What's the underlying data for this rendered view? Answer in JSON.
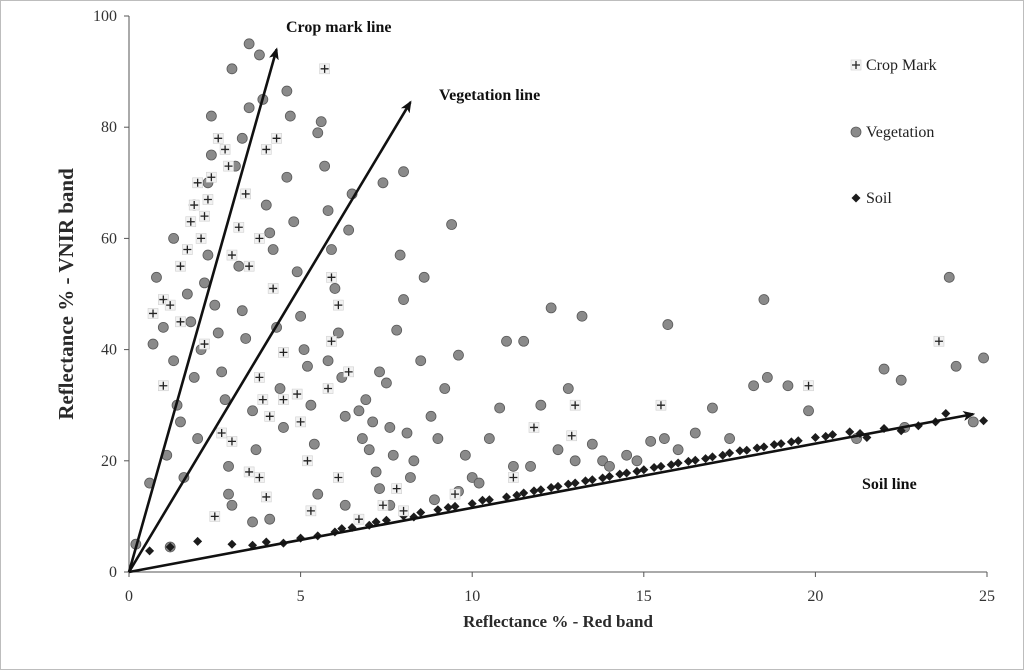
{
  "chart_data": {
    "type": "scatter",
    "xlabel": "Reflectance % - Red band",
    "ylabel": "Reflectance % - VNIR band",
    "xlim": [
      0,
      25
    ],
    "ylim": [
      0,
      100
    ],
    "x_ticks": [
      "0",
      "5",
      "10",
      "15",
      "20",
      "25"
    ],
    "y_ticks": [
      "0",
      "20",
      "40",
      "60",
      "80",
      "100"
    ],
    "grid": false,
    "legend_position": "top-right",
    "series": [
      {
        "name": "Crop Mark",
        "marker": "square-cross",
        "color": "#f2f2f2",
        "points": [
          [
            0.7,
            46.5
          ],
          [
            1.0,
            49
          ],
          [
            1.2,
            48
          ],
          [
            1.0,
            33.5
          ],
          [
            1.5,
            55
          ],
          [
            1.7,
            58
          ],
          [
            1.8,
            63
          ],
          [
            1.9,
            66
          ],
          [
            2.0,
            70
          ],
          [
            2.1,
            60
          ],
          [
            2.2,
            64
          ],
          [
            2.3,
            67
          ],
          [
            2.4,
            71
          ],
          [
            2.6,
            78
          ],
          [
            2.8,
            76
          ],
          [
            2.9,
            73
          ],
          [
            3.0,
            57
          ],
          [
            3.2,
            62
          ],
          [
            3.4,
            68
          ],
          [
            3.5,
            55
          ],
          [
            3.8,
            60
          ],
          [
            4.0,
            76
          ],
          [
            4.3,
            78
          ],
          [
            4.2,
            51
          ],
          [
            4.5,
            39.5
          ],
          [
            3.8,
            35
          ],
          [
            3.9,
            31
          ],
          [
            4.1,
            28
          ],
          [
            4.5,
            31
          ],
          [
            4.9,
            32
          ],
          [
            5.0,
            27
          ],
          [
            5.2,
            20
          ],
          [
            3.5,
            18
          ],
          [
            3.8,
            17
          ],
          [
            4.0,
            13.5
          ],
          [
            2.5,
            10
          ],
          [
            5.7,
            90.5
          ],
          [
            5.9,
            53
          ],
          [
            6.1,
            48
          ],
          [
            5.9,
            41.5
          ],
          [
            5.8,
            33
          ],
          [
            6.4,
            36
          ],
          [
            6.1,
            17
          ],
          [
            5.3,
            11
          ],
          [
            6.7,
            9.5
          ],
          [
            7.4,
            12
          ],
          [
            7.8,
            15
          ],
          [
            8.0,
            11
          ],
          [
            9.5,
            14
          ],
          [
            11.2,
            17
          ],
          [
            11.8,
            26
          ],
          [
            12.9,
            24.5
          ],
          [
            13.0,
            30
          ],
          [
            15.5,
            30
          ],
          [
            19.8,
            33.5
          ],
          [
            23.6,
            41.5
          ],
          [
            3.0,
            23.5
          ],
          [
            2.7,
            25
          ],
          [
            1.5,
            45
          ],
          [
            2.2,
            41
          ]
        ]
      },
      {
        "name": "Vegetation",
        "marker": "circle",
        "color": "#8a8a8a",
        "points": [
          [
            0.2,
            5
          ],
          [
            0.6,
            16
          ],
          [
            0.8,
            53
          ],
          [
            0.7,
            41
          ],
          [
            1.1,
            21
          ],
          [
            1.2,
            4.5
          ],
          [
            1.3,
            38
          ],
          [
            1.4,
            30
          ],
          [
            1.5,
            27
          ],
          [
            1.6,
            17
          ],
          [
            1.7,
            50
          ],
          [
            1.8,
            45
          ],
          [
            1.9,
            35
          ],
          [
            2.0,
            24
          ],
          [
            2.1,
            40
          ],
          [
            2.2,
            52
          ],
          [
            2.3,
            57
          ],
          [
            2.4,
            75
          ],
          [
            2.4,
            82
          ],
          [
            2.5,
            48
          ],
          [
            2.6,
            43
          ],
          [
            2.7,
            36
          ],
          [
            2.8,
            31
          ],
          [
            2.9,
            19
          ],
          [
            3.0,
            12
          ],
          [
            3.0,
            90.5
          ],
          [
            3.1,
            73
          ],
          [
            3.2,
            55
          ],
          [
            3.3,
            47
          ],
          [
            3.4,
            42
          ],
          [
            3.5,
            83.5
          ],
          [
            3.5,
            95
          ],
          [
            3.6,
            29
          ],
          [
            3.7,
            22
          ],
          [
            3.8,
            93
          ],
          [
            3.9,
            85
          ],
          [
            4.0,
            66
          ],
          [
            4.1,
            61
          ],
          [
            4.2,
            58
          ],
          [
            4.3,
            44
          ],
          [
            4.4,
            33
          ],
          [
            4.5,
            26
          ],
          [
            4.6,
            71
          ],
          [
            4.7,
            82
          ],
          [
            4.8,
            63
          ],
          [
            4.9,
            54
          ],
          [
            5.0,
            46
          ],
          [
            5.1,
            40
          ],
          [
            5.2,
            37
          ],
          [
            5.3,
            30
          ],
          [
            5.4,
            23
          ],
          [
            5.5,
            79
          ],
          [
            5.6,
            81
          ],
          [
            5.7,
            73
          ],
          [
            5.8,
            65
          ],
          [
            5.9,
            58
          ],
          [
            6.0,
            51
          ],
          [
            6.1,
            43
          ],
          [
            6.2,
            35
          ],
          [
            6.3,
            28
          ],
          [
            6.4,
            61.5
          ],
          [
            6.5,
            68
          ],
          [
            6.7,
            29
          ],
          [
            6.8,
            24
          ],
          [
            7.0,
            22
          ],
          [
            7.1,
            27
          ],
          [
            7.2,
            18
          ],
          [
            7.3,
            15
          ],
          [
            7.4,
            70
          ],
          [
            7.5,
            34
          ],
          [
            7.6,
            26
          ],
          [
            7.7,
            21
          ],
          [
            7.8,
            43.5
          ],
          [
            7.9,
            57
          ],
          [
            8.0,
            72
          ],
          [
            8.0,
            49
          ],
          [
            8.1,
            25
          ],
          [
            8.2,
            17
          ],
          [
            8.3,
            20
          ],
          [
            8.5,
            38
          ],
          [
            8.6,
            53
          ],
          [
            8.8,
            28
          ],
          [
            9.0,
            24
          ],
          [
            9.2,
            33
          ],
          [
            9.4,
            62.5
          ],
          [
            9.6,
            39
          ],
          [
            9.8,
            21
          ],
          [
            10.0,
            17
          ],
          [
            10.2,
            16
          ],
          [
            10.5,
            24
          ],
          [
            10.8,
            29.5
          ],
          [
            11.0,
            41.5
          ],
          [
            11.2,
            19
          ],
          [
            11.5,
            41.5
          ],
          [
            11.7,
            19
          ],
          [
            12.0,
            30
          ],
          [
            12.3,
            47.5
          ],
          [
            12.5,
            22
          ],
          [
            12.8,
            33
          ],
          [
            13.0,
            20
          ],
          [
            13.2,
            46
          ],
          [
            13.5,
            23
          ],
          [
            13.8,
            20
          ],
          [
            14.0,
            19
          ],
          [
            14.5,
            21
          ],
          [
            14.8,
            20
          ],
          [
            15.2,
            23.5
          ],
          [
            15.6,
            24
          ],
          [
            15.7,
            44.5
          ],
          [
            16.0,
            22
          ],
          [
            16.5,
            25
          ],
          [
            17.0,
            29.5
          ],
          [
            17.5,
            24
          ],
          [
            18.2,
            33.5
          ],
          [
            18.5,
            49
          ],
          [
            18.6,
            35
          ],
          [
            19.2,
            33.5
          ],
          [
            19.8,
            29
          ],
          [
            21.2,
            24
          ],
          [
            22.0,
            36.5
          ],
          [
            22.5,
            34.5
          ],
          [
            22.6,
            26
          ],
          [
            23.9,
            53
          ],
          [
            24.1,
            37
          ],
          [
            24.6,
            27
          ],
          [
            24.9,
            38.5
          ],
          [
            1.0,
            44
          ],
          [
            1.3,
            60
          ],
          [
            1.9,
            66
          ],
          [
            2.3,
            70
          ],
          [
            3.3,
            78
          ],
          [
            4.6,
            86.5
          ],
          [
            2.9,
            14
          ],
          [
            4.1,
            9.5
          ],
          [
            3.6,
            9
          ],
          [
            5.5,
            14
          ],
          [
            6.3,
            12
          ],
          [
            7.6,
            12
          ],
          [
            8.9,
            13
          ],
          [
            9.6,
            14.5
          ],
          [
            6.9,
            31
          ],
          [
            7.3,
            36
          ],
          [
            5.8,
            38
          ]
        ]
      },
      {
        "name": "Soil",
        "marker": "diamond",
        "color": "#1c1c1c",
        "points": [
          [
            0.6,
            3.8
          ],
          [
            1.2,
            4.5
          ],
          [
            2.0,
            5.5
          ],
          [
            3.0,
            5.0
          ],
          [
            3.6,
            4.8
          ],
          [
            4.0,
            5.4
          ],
          [
            4.5,
            5.2
          ],
          [
            5.0,
            6.1
          ],
          [
            5.5,
            6.5
          ],
          [
            6.0,
            7.2
          ],
          [
            6.5,
            8.0
          ],
          [
            7.0,
            8.4
          ],
          [
            7.5,
            9.3
          ],
          [
            8.0,
            10.1
          ],
          [
            8.5,
            10.7
          ],
          [
            9.0,
            11.2
          ],
          [
            9.5,
            11.8
          ],
          [
            10.0,
            12.3
          ],
          [
            10.5,
            13.0
          ],
          [
            11.0,
            13.5
          ],
          [
            11.5,
            14.2
          ],
          [
            12.0,
            14.8
          ],
          [
            12.5,
            15.4
          ],
          [
            13.0,
            16.0
          ],
          [
            13.5,
            16.6
          ],
          [
            14.0,
            17.2
          ],
          [
            14.5,
            17.8
          ],
          [
            15.0,
            18.4
          ],
          [
            15.5,
            19.0
          ],
          [
            16.0,
            19.6
          ],
          [
            16.5,
            20.1
          ],
          [
            17.0,
            20.7
          ],
          [
            17.5,
            21.4
          ],
          [
            18.0,
            21.9
          ],
          [
            18.5,
            22.5
          ],
          [
            19.0,
            23.1
          ],
          [
            19.5,
            23.6
          ],
          [
            20.0,
            24.2
          ],
          [
            20.5,
            24.7
          ],
          [
            21.0,
            25.2
          ],
          [
            21.5,
            24.2
          ],
          [
            22.0,
            25.8
          ],
          [
            22.5,
            25.4
          ],
          [
            23.0,
            26.3
          ],
          [
            23.5,
            27.0
          ],
          [
            23.8,
            28.5
          ],
          [
            24.9,
            27.2
          ],
          [
            6.2,
            7.8
          ],
          [
            7.2,
            9.0
          ],
          [
            8.3,
            9.9
          ],
          [
            9.3,
            11.6
          ],
          [
            10.3,
            12.9
          ],
          [
            11.3,
            13.8
          ],
          [
            12.3,
            15.2
          ],
          [
            13.3,
            16.4
          ],
          [
            14.3,
            17.6
          ],
          [
            15.3,
            18.8
          ],
          [
            16.3,
            19.9
          ],
          [
            17.3,
            21.0
          ],
          [
            18.3,
            22.3
          ],
          [
            19.3,
            23.4
          ],
          [
            20.3,
            24.4
          ],
          [
            21.3,
            24.9
          ],
          [
            17.8,
            21.8
          ],
          [
            18.8,
            22.9
          ],
          [
            16.8,
            20.4
          ],
          [
            15.8,
            19.3
          ],
          [
            14.8,
            18.1
          ],
          [
            13.8,
            16.9
          ],
          [
            12.8,
            15.8
          ],
          [
            11.8,
            14.6
          ]
        ]
      }
    ],
    "annotations": [
      {
        "label": "Crop mark line",
        "from": [
          0,
          0
        ],
        "to": [
          4.3,
          94
        ]
      },
      {
        "label": "Vegetation line",
        "from": [
          0,
          0
        ],
        "to": [
          8.2,
          84.5
        ]
      },
      {
        "label": "Soil line",
        "from": [
          0,
          0
        ],
        "to": [
          24.6,
          28.4
        ]
      }
    ]
  }
}
